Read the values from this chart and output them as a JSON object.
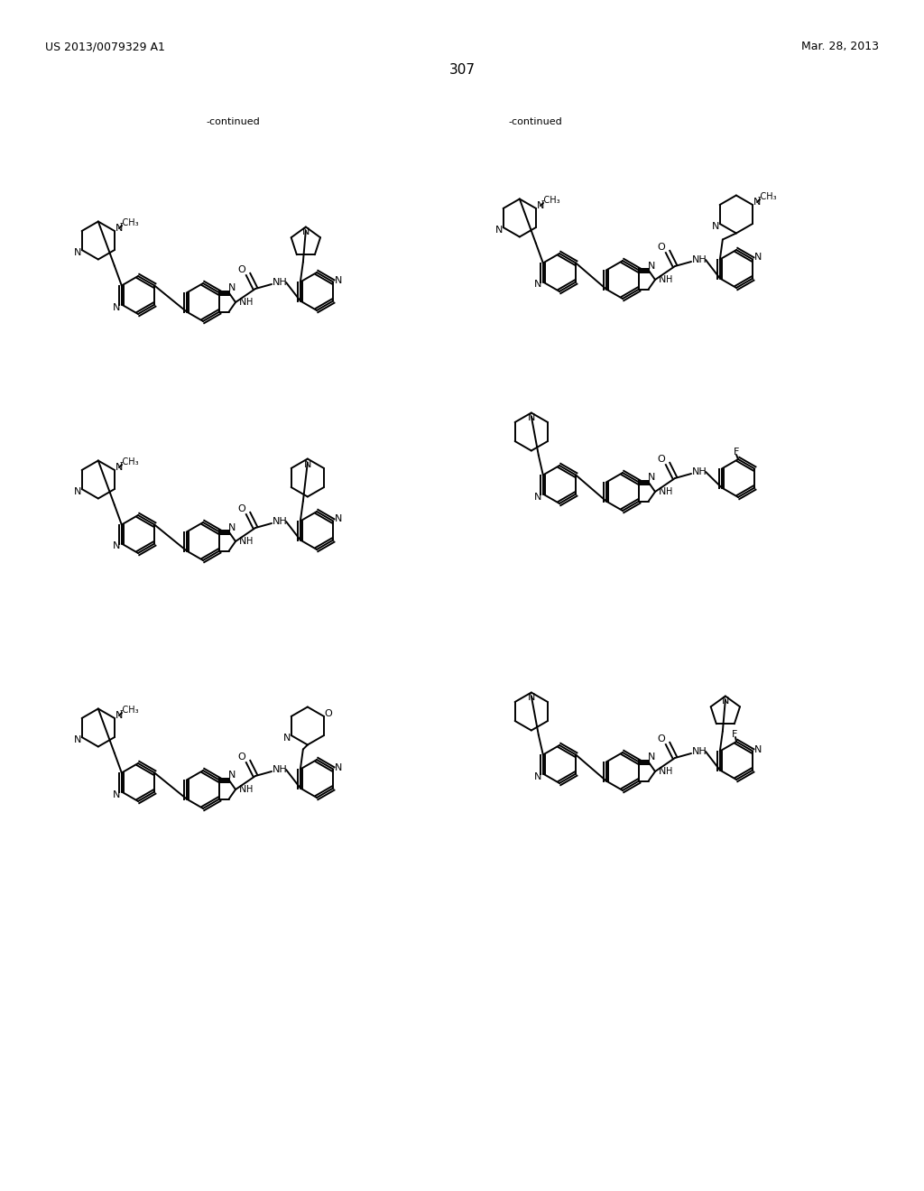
{
  "background_color": "#ffffff",
  "page_number": "307",
  "header_left": "US 2013/0079329 A1",
  "header_right": "Mar. 28, 2013",
  "continued_left": "-continued",
  "continued_right": "-continued"
}
